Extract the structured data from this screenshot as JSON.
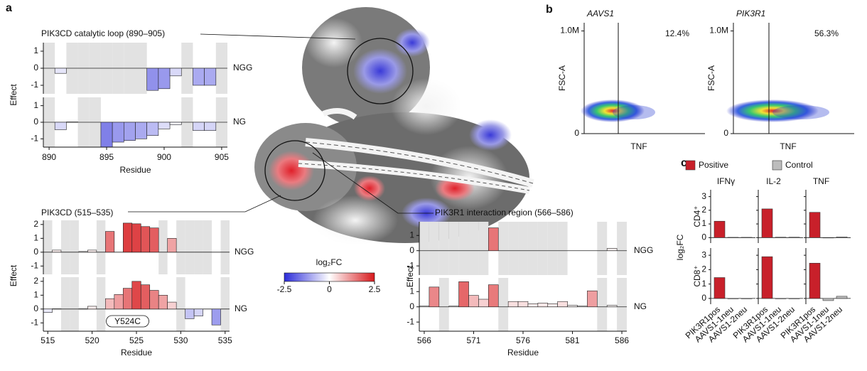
{
  "panel_labels": [
    "a",
    "b",
    "c"
  ],
  "colorbar": {
    "label": "log₂FC",
    "lim": [
      -2.5,
      2.5
    ],
    "ticks": [
      -2.5,
      0,
      2.5
    ]
  },
  "chart_data": [
    {
      "type": "bar",
      "title": "PIK3CD catalytic loop (890–905)",
      "xlabel": "Residue",
      "ylabel": "Effect",
      "x": [
        890,
        891,
        892,
        893,
        894,
        895,
        896,
        897,
        898,
        899,
        900,
        901,
        902,
        903,
        904,
        905
      ],
      "xlim": [
        889.5,
        905.5
      ],
      "xticks": [
        890,
        895,
        900,
        905
      ],
      "ylim": [
        -1.5,
        1.5
      ],
      "yticks": [
        -1,
        0,
        1
      ],
      "series": [
        {
          "name": "NGG",
          "values": [
            null,
            -0.3,
            null,
            null,
            null,
            null,
            null,
            null,
            null,
            -1.3,
            -1.2,
            -0.45,
            null,
            -1.0,
            -1.0,
            null
          ]
        },
        {
          "name": "NG",
          "values": [
            null,
            -0.45,
            0.02,
            null,
            null,
            -1.5,
            -1.2,
            -1.1,
            -1.0,
            -0.8,
            -0.4,
            -0.15,
            null,
            -0.5,
            -0.5,
            null
          ]
        }
      ]
    },
    {
      "type": "bar",
      "title": "PIK3CD (515–535)",
      "xlabel": "Residue",
      "ylabel": "Effect",
      "annotation": "Y524C",
      "x": [
        515,
        516,
        517,
        518,
        519,
        520,
        521,
        522,
        523,
        524,
        525,
        526,
        527,
        528,
        529,
        530,
        531,
        532,
        533,
        534,
        535
      ],
      "xlim": [
        514.5,
        535.5
      ],
      "xticks": [
        515,
        520,
        525,
        530,
        535
      ],
      "ylim": [
        -1.6,
        2.3
      ],
      "yticks": [
        -1,
        0,
        1,
        2
      ],
      "series": [
        {
          "name": "NGG",
          "values": [
            null,
            0.15,
            null,
            null,
            0.05,
            0.15,
            null,
            1.5,
            0,
            2.1,
            2.05,
            1.85,
            1.75,
            null,
            1.0,
            null,
            null,
            null,
            null,
            0,
            null
          ]
        },
        {
          "name": "NG",
          "values": [
            -0.25,
            0.02,
            null,
            null,
            0.02,
            0.2,
            null,
            0.75,
            1.05,
            1.5,
            2.0,
            1.75,
            1.35,
            1.0,
            0.5,
            null,
            -0.7,
            -0.5,
            0,
            -1.15,
            null
          ]
        }
      ]
    },
    {
      "type": "bar",
      "title": "PIK3R1 interaction region (566–586)",
      "xlabel": "Residue",
      "ylabel": "Effect",
      "x": [
        566,
        567,
        568,
        569,
        570,
        571,
        572,
        573,
        574,
        575,
        576,
        577,
        578,
        579,
        580,
        581,
        582,
        583,
        584,
        585,
        586
      ],
      "xlim": [
        565.5,
        586.5
      ],
      "xticks": [
        566,
        571,
        576,
        581,
        586
      ],
      "ylim": [
        -1.6,
        1.9
      ],
      "yticks": [
        -1,
        0,
        1
      ],
      "series": [
        {
          "name": "NGG",
          "values": [
            null,
            null,
            null,
            null,
            null,
            null,
            null,
            1.5,
            null,
            null,
            null,
            null,
            null,
            null,
            null,
            0,
            0,
            0,
            null,
            0.15,
            null
          ]
        },
        {
          "name": "NG",
          "values": [
            0.05,
            1.3,
            null,
            0.05,
            1.65,
            0.75,
            0.5,
            1.45,
            null,
            0.35,
            0.35,
            0.2,
            0.25,
            0.2,
            0.35,
            0.1,
            0.05,
            1.05,
            null,
            0.1,
            null
          ]
        }
      ]
    },
    {
      "type": "flow",
      "title": "AAVS1",
      "xlabel": "TNF",
      "ylabel": "FSC-A",
      "annotation": "12.4%",
      "ylim": [
        0,
        1080000
      ],
      "yticks": [
        0,
        {
          "value": 1000000,
          "label": "1.0M"
        }
      ]
    },
    {
      "type": "flow",
      "title": "PIK3R1",
      "xlabel": "TNF",
      "ylabel": "FSC-A",
      "annotation": "56.3%",
      "ylim": [
        0,
        1080000
      ],
      "yticks": [
        0,
        {
          "value": 1000000,
          "label": "1.0M"
        }
      ]
    },
    {
      "type": "bar-grid",
      "ylabel": "log₂FC",
      "legend": [
        {
          "name": "Positive",
          "color": "#c8202a"
        },
        {
          "name": "Control",
          "color": "#bdbdbd"
        }
      ],
      "category_legend": [
        0,
        1,
        1
      ],
      "columns": [
        "IFNγ",
        "IL-2",
        "TNF"
      ],
      "rows": [
        "CD4⁺",
        "CD8⁺"
      ],
      "categories": [
        "PIK3R1pos",
        "AAVS1-1neu",
        "AAVS1-2neu"
      ],
      "ylim": [
        -0.4,
        3.5
      ],
      "yticks": [
        0,
        1,
        2,
        3
      ],
      "values": [
        [
          [
            1.2,
            0.02,
            0.02
          ],
          [
            2.1,
            0.03,
            0.03
          ],
          [
            1.85,
            0.0,
            0.05
          ]
        ],
        [
          [
            1.45,
            0.0,
            0.0
          ],
          [
            2.9,
            0.0,
            0.0
          ],
          [
            2.45,
            -0.15,
            0.15
          ]
        ]
      ]
    }
  ]
}
